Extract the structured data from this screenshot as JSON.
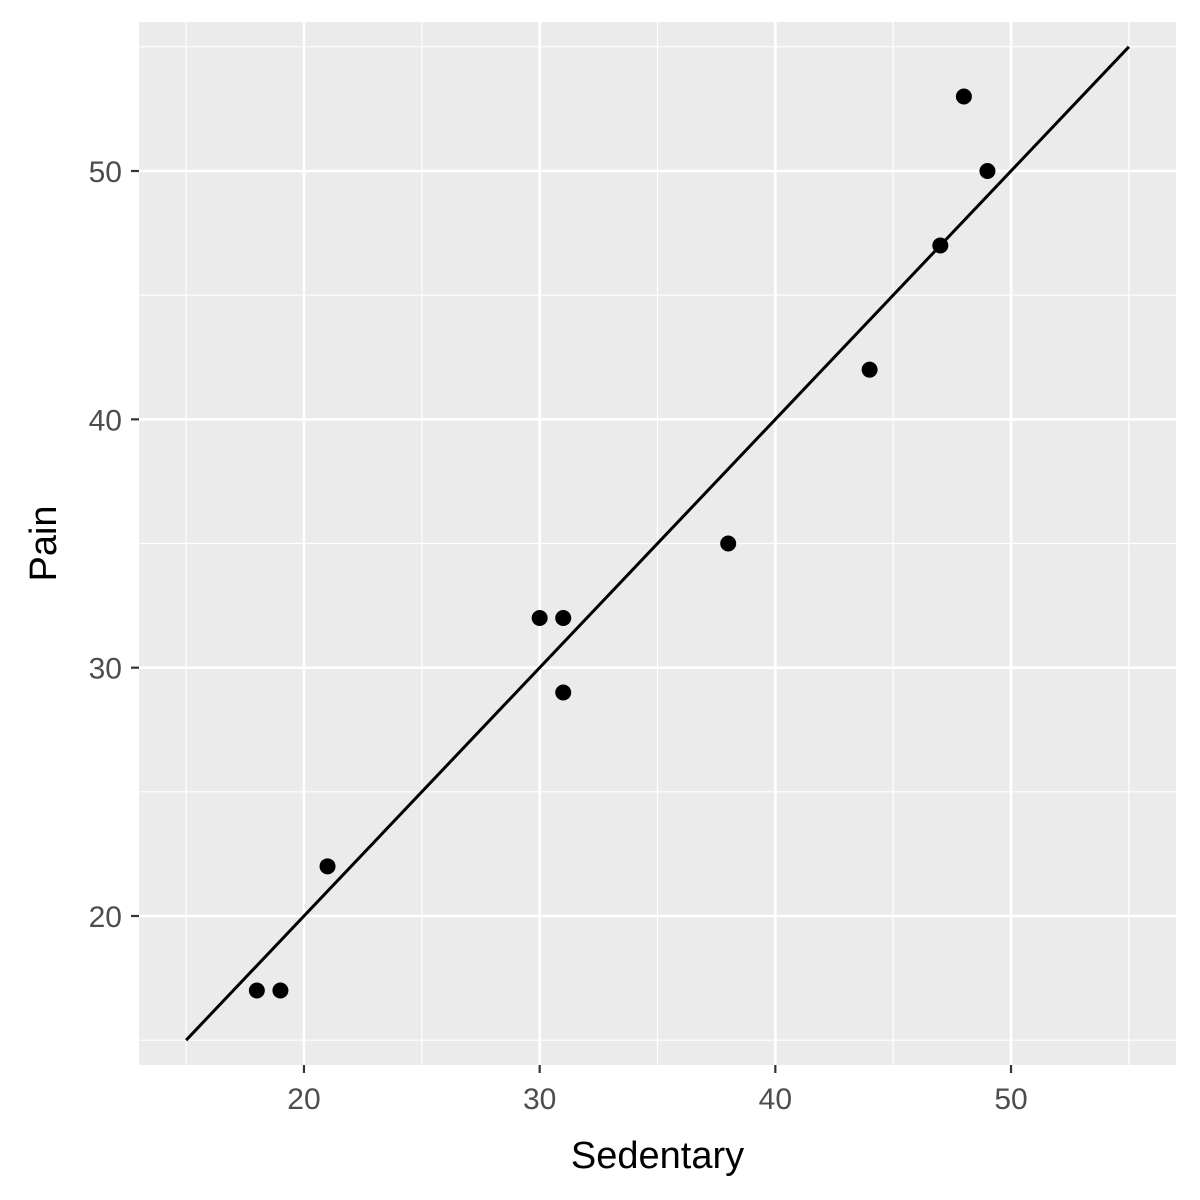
{
  "chart_data": {
    "type": "scatter",
    "xlabel": "Sedentary",
    "ylabel": "Pain",
    "xlim": [
      13,
      57
    ],
    "ylim": [
      14,
      56
    ],
    "x_ticks": [
      20,
      30,
      40,
      50
    ],
    "y_ticks": [
      20,
      30,
      40,
      50
    ],
    "grid": true,
    "points": [
      {
        "x": 18,
        "y": 17
      },
      {
        "x": 19,
        "y": 17
      },
      {
        "x": 21,
        "y": 22
      },
      {
        "x": 30,
        "y": 32
      },
      {
        "x": 31,
        "y": 32
      },
      {
        "x": 31,
        "y": 29
      },
      {
        "x": 38,
        "y": 35
      },
      {
        "x": 44,
        "y": 42
      },
      {
        "x": 47,
        "y": 47
      },
      {
        "x": 48,
        "y": 53
      },
      {
        "x": 49,
        "y": 50
      }
    ],
    "reference_line": {
      "x": [
        15,
        55
      ],
      "y": [
        15,
        55
      ]
    },
    "colors": {
      "panel": "#ebebeb",
      "grid": "#ffffff",
      "points": "#000000",
      "line": "#000000",
      "tick_text": "#4d4d4d"
    }
  }
}
